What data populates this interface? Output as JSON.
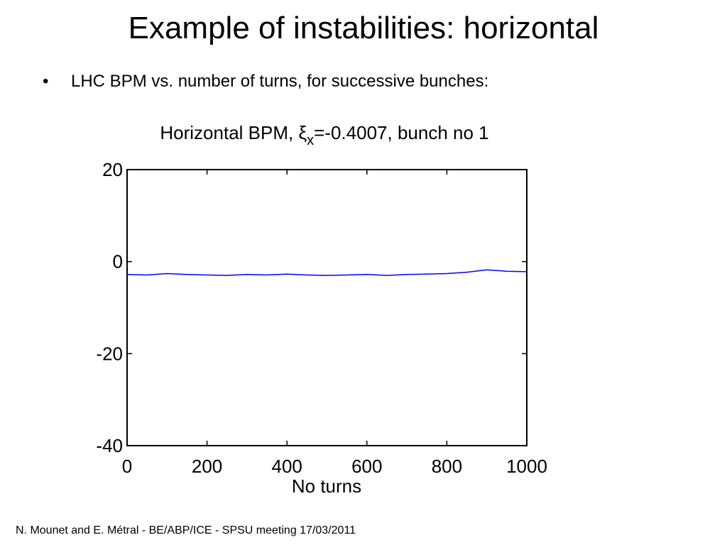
{
  "slide": {
    "title": "Example of instabilities: horizontal",
    "bullet_symbol": "•",
    "bullet_text": "LHC BPM vs. number of turns, for successive bunches:",
    "footer": "N. Mounet and E. Métral - BE/ABP/ICE - SPSU meeting 17/03/2011"
  },
  "chart_data": {
    "type": "line",
    "title_prefix": "Horizontal BPM, ",
    "title_symbol": "ξ",
    "title_subscript": "x",
    "title_suffix": "=-0.4007, bunch no 1",
    "xlabel": "No turns",
    "ylabel": "",
    "xlim": [
      0,
      1000
    ],
    "ylim": [
      -40,
      20
    ],
    "xticks": [
      0,
      200,
      400,
      600,
      800,
      1000
    ],
    "yticks": [
      -40,
      -20,
      0,
      20
    ],
    "grid": false,
    "series": [
      {
        "color": "#0000ff",
        "x": [
          0,
          50,
          100,
          150,
          200,
          250,
          300,
          350,
          400,
          450,
          500,
          550,
          600,
          650,
          700,
          750,
          800,
          850,
          900,
          950,
          1000
        ],
        "y": [
          -2.8,
          -2.9,
          -2.6,
          -2.8,
          -2.9,
          -3.0,
          -2.8,
          -2.9,
          -2.7,
          -2.9,
          -3.0,
          -2.9,
          -2.8,
          -3.0,
          -2.8,
          -2.7,
          -2.6,
          -2.3,
          -1.8,
          -2.1,
          -2.2
        ]
      }
    ]
  }
}
